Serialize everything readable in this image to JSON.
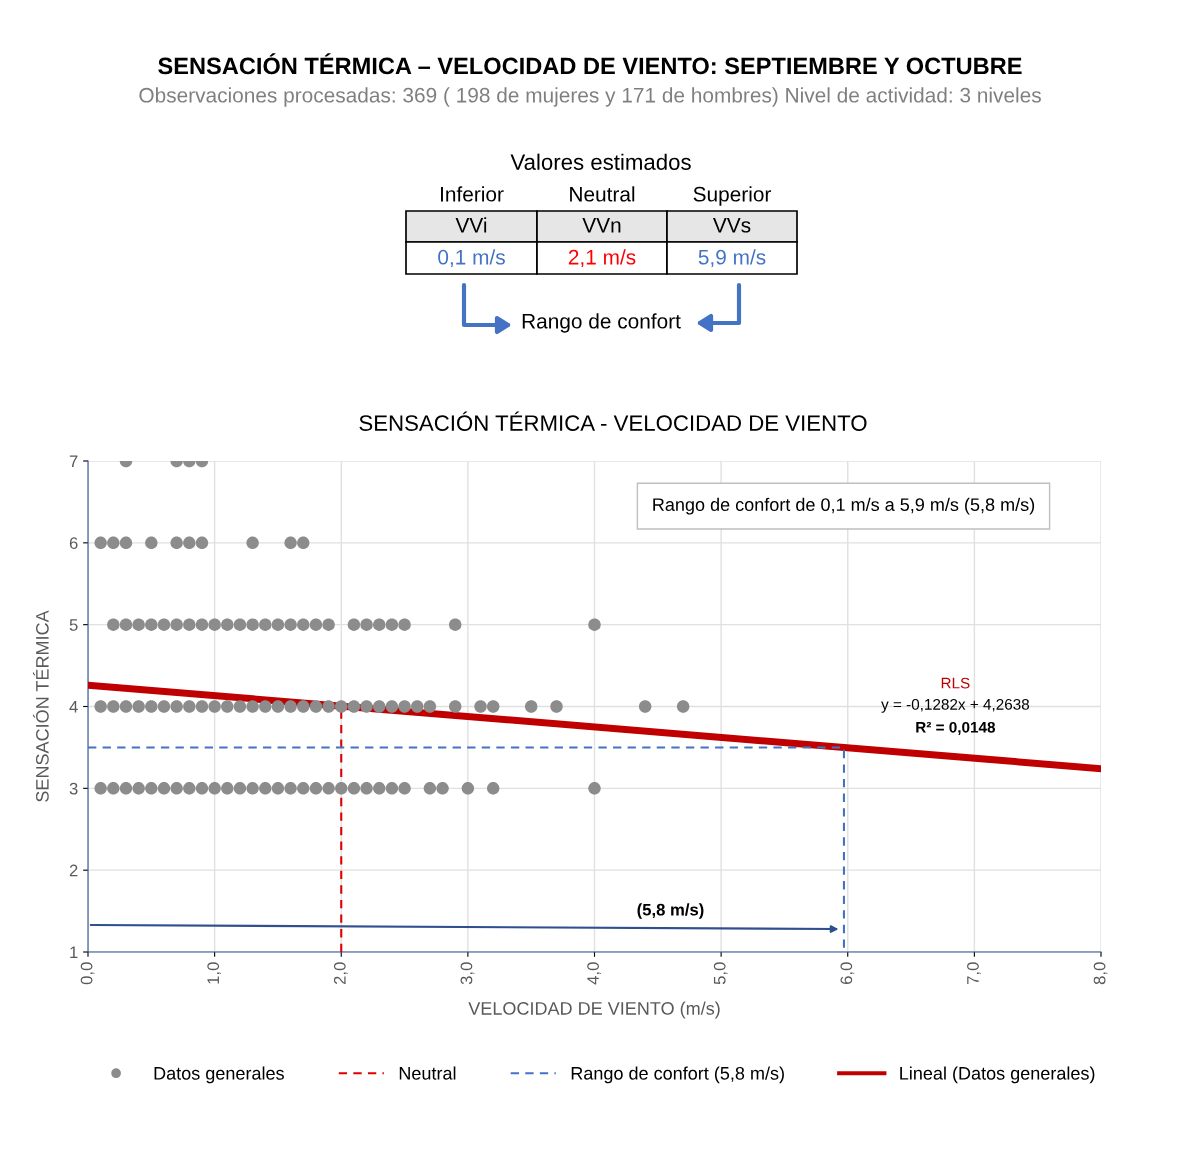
{
  "chart_data": {
    "type": "scatter",
    "title": "SENSACIÓN TÉRMICA – VELOCIDAD DE VIENTO: SEPTIEMBRE Y OCTUBRE",
    "subtitle": "Observaciones procesadas: 369 ( 198 de mujeres y 171 de hombres) Nivel de actividad: 3 niveles",
    "xlabel": "VELOCIDAD DE VIENTO (m/s)",
    "ylabel": "SENSACIÓN TÉRMICA",
    "annotations": [
      "Valores estimados",
      "Inferior",
      "Neutral",
      "Superior",
      "VVi",
      "VVn",
      "VVs",
      "0,1 m/s",
      "2,1 m/s",
      "5,9 m/s",
      "Rango de confort",
      "SENSACIÓN TÉRMICA - VELOCIDAD DE VIENTO",
      "Rango de confort de 0,1 m/s a 5,9 m/s (5,8 m/s)",
      "RLS",
      "y = -0,1282x + 4,2638",
      "R² = 0,0148",
      "(5,8 m/s)"
    ],
    "series": [
      {
        "name": "Datos generales",
        "color": "#8c8c8c",
        "marker": "circle",
        "x": [
          0.3,
          0.7,
          0.8,
          0.9,
          0.1,
          0.2,
          0.3,
          0.5,
          0.7,
          0.8,
          0.9,
          1.3,
          1.6,
          1.7,
          0.2,
          0.3,
          0.4,
          0.5,
          0.6,
          0.7,
          0.8,
          0.9,
          1.0,
          1.1,
          1.2,
          1.3,
          1.4,
          1.5,
          1.6,
          1.7,
          1.8,
          1.9,
          2.1,
          2.2,
          2.3,
          2.4,
          2.5,
          2.9,
          4.0,
          0.1,
          0.2,
          0.3,
          0.4,
          0.5,
          0.6,
          0.7,
          0.8,
          0.9,
          1.0,
          1.1,
          1.2,
          1.3,
          1.4,
          1.5,
          1.6,
          1.7,
          1.8,
          1.9,
          2.0,
          2.1,
          2.2,
          2.3,
          2.4,
          2.5,
          2.6,
          2.7,
          2.9,
          3.1,
          3.2,
          3.5,
          3.7,
          4.4,
          4.7,
          0.1,
          0.2,
          0.3,
          0.4,
          0.5,
          0.6,
          0.7,
          0.8,
          0.9,
          1.0,
          1.1,
          1.2,
          1.3,
          1.4,
          1.5,
          1.6,
          1.7,
          1.8,
          1.9,
          2.0,
          2.1,
          2.2,
          2.3,
          2.4,
          2.5,
          2.7,
          2.8,
          3.0,
          3.2,
          4.0
        ],
        "values": [
          7,
          7,
          7,
          7,
          6,
          6,
          6,
          6,
          6,
          6,
          6,
          6,
          6,
          6,
          5,
          5,
          5,
          5,
          5,
          5,
          5,
          5,
          5,
          5,
          5,
          5,
          5,
          5,
          5,
          5,
          5,
          5,
          5,
          5,
          5,
          5,
          5,
          5,
          5,
          4,
          4,
          4,
          4,
          4,
          4,
          4,
          4,
          4,
          4,
          4,
          4,
          4,
          4,
          4,
          4,
          4,
          4,
          4,
          4,
          4,
          4,
          4,
          4,
          4,
          4,
          4,
          4,
          4,
          4,
          4,
          4,
          4,
          4,
          3,
          3,
          3,
          3,
          3,
          3,
          3,
          3,
          3,
          3,
          3,
          3,
          3,
          3,
          3,
          3,
          3,
          3,
          3,
          3,
          3,
          3,
          3,
          3,
          3,
          3,
          3,
          3,
          3,
          3
        ]
      },
      {
        "name": "Neutral",
        "type": "line",
        "color": "#e00000",
        "line_style": "dashed",
        "x": [
          2.0,
          2.0
        ],
        "values": [
          1,
          4
        ]
      },
      {
        "name": "Rango de confort (5,8 m/s)",
        "type": "line",
        "color": "#4472c4",
        "line_style": "dashed",
        "x": [
          0,
          5.97,
          5.97
        ],
        "values": [
          3.5,
          3.5,
          1
        ]
      },
      {
        "name": "Lineal (Datos generales)",
        "type": "line",
        "color": "#c00000",
        "line_style": "solid",
        "x": [
          0,
          8
        ],
        "values": [
          4.26,
          3.24
        ]
      }
    ],
    "xlim": [
      0,
      8
    ],
    "xticks": [
      {
        "value": 0,
        "label": "0,0"
      },
      {
        "value": 1,
        "label": "1,0"
      },
      {
        "value": 2,
        "label": "2,0"
      },
      {
        "value": 3,
        "label": "3,0"
      },
      {
        "value": 4,
        "label": "4,0"
      },
      {
        "value": 5,
        "label": "5,0"
      },
      {
        "value": 6,
        "label": "6,0"
      },
      {
        "value": 7,
        "label": "7,0"
      },
      {
        "value": 8,
        "label": "8,0"
      }
    ],
    "ylim": [
      1,
      7
    ],
    "yticks": [
      1,
      2,
      3,
      4,
      5,
      6,
      7
    ],
    "grid": true,
    "legend": "bottom"
  }
}
